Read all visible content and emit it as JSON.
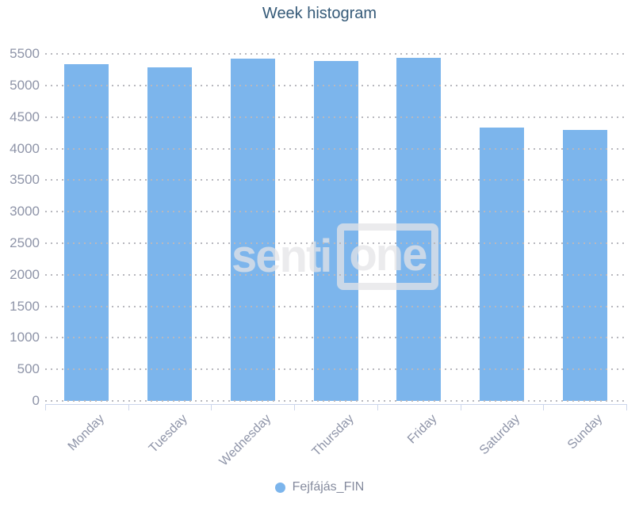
{
  "title": "Week histogram",
  "legend": {
    "label": "Fejfájás_FIN",
    "marker_color": "#7cb5ec"
  },
  "watermark": {
    "text_left": "senti",
    "text_boxed": "one"
  },
  "colors": {
    "bar_fill": "#7cb5ec",
    "bar_border": "#ffffff",
    "gridline": "#b8b8be",
    "axis_line": "#ccd6eb",
    "axis_label": "#8e94a8",
    "title": "#355a78",
    "legend_label": "#858b9e"
  },
  "chart_data": {
    "type": "bar",
    "title": "Week histogram",
    "categories": [
      "Monday",
      "Tuesday",
      "Wednesday",
      "Thursday",
      "Friday",
      "Saturday",
      "Sunday"
    ],
    "series": [
      {
        "name": "Fejfájás_FIN",
        "color": "#7cb5ec",
        "values": [
          5350,
          5300,
          5440,
          5400,
          5450,
          4340,
          4310
        ]
      }
    ],
    "xlabel": "",
    "ylabel": "",
    "ylim": [
      0,
      5500
    ],
    "yticks": [
      0,
      500,
      1000,
      1500,
      2000,
      2500,
      3000,
      3500,
      4000,
      4500,
      5000,
      5500
    ],
    "grid": "dotted-horizontal",
    "gridlines_above_bars": true,
    "legend_position": "bottom-center",
    "x_label_rotation_deg": -45
  }
}
